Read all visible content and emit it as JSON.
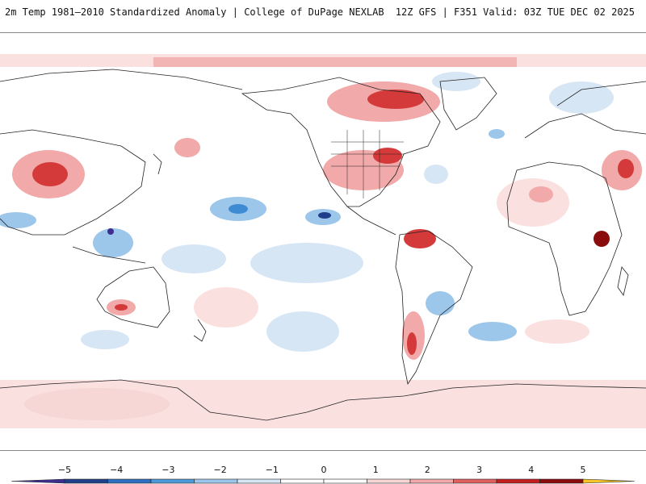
{
  "header": {
    "left_title": "2m Temp 1981–2010 Standardized Anomaly | College of DuPage NEXLAB",
    "right_title": "12Z GFS | F351 Valid: 03Z TUE DEC 02 2025"
  },
  "legend": {
    "ticks": [
      "−5",
      "−4",
      "−3",
      "−2",
      "−1",
      "0",
      "1",
      "2",
      "3",
      "4",
      "5"
    ],
    "segment_colors": [
      "#3c2f8f",
      "#1f3f8a",
      "#2d6fc0",
      "#4d9ad8",
      "#9cc6ea",
      "#d7e6f5",
      "#ffffff",
      "#ffffff",
      "#f7d6d6",
      "#f1a9a9",
      "#e06060",
      "#c42020",
      "#8a0c0c",
      "#f7c52a"
    ]
  },
  "colors": {
    "warm_light": "#fbe0e0",
    "warm_mid": "#f1a9a9",
    "warm_strong": "#d43a3a",
    "warm_extreme": "#8a0c0c",
    "cool_light": "#d7e6f5",
    "cool_mid": "#9cc6ea",
    "cool_strong": "#3f8bd3",
    "cool_extreme": "#1f3f8a",
    "coast": "#222222"
  }
}
